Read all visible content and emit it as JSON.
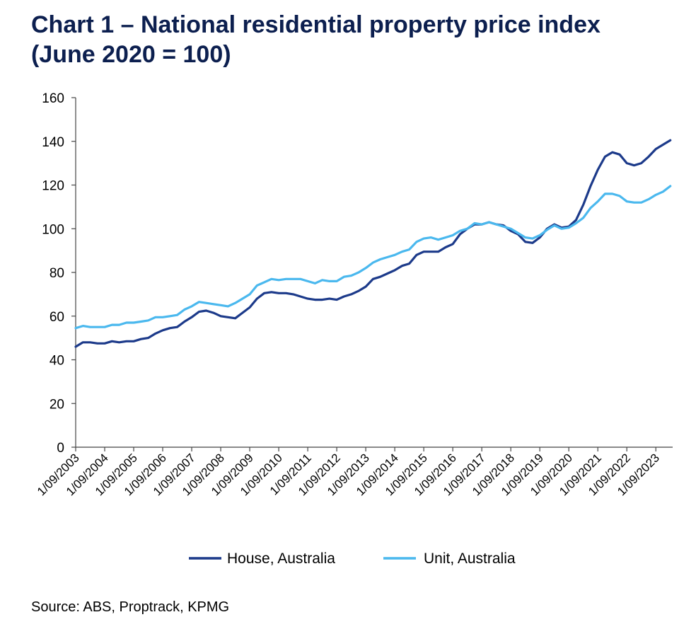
{
  "title_line1": "Chart 1 – National residential property price index",
  "title_line2": "(June 2020 = 100)",
  "source": "Source: ABS, Proptrack, KPMG",
  "colors": {
    "house": "#1c3a8a",
    "unit": "#4ab8ee",
    "axis": "#444444"
  },
  "chart_data": {
    "type": "line",
    "title": "Chart 1 – National residential property price index (June 2020 = 100)",
    "xlabel": "",
    "ylabel": "",
    "ylim": [
      0,
      160
    ],
    "yticks": [
      "0",
      "20",
      "40",
      "60",
      "80",
      "100",
      "120",
      "140",
      "160"
    ],
    "x_labels": [
      "1/09/2003",
      "1/09/2004",
      "1/09/2005",
      "1/09/2006",
      "1/09/2007",
      "1/09/2008",
      "1/09/2009",
      "1/09/2010",
      "1/09/2011",
      "1/09/2012",
      "1/09/2013",
      "1/09/2014",
      "1/09/2015",
      "1/09/2016",
      "1/09/2017",
      "1/09/2018",
      "1/09/2019",
      "1/09/2020",
      "1/09/2021",
      "1/09/2022",
      "1/09/2023"
    ],
    "x_start": 2003.67,
    "x_end": 2024.25,
    "legend_position": "bottom",
    "series": [
      {
        "name": "House, Australia",
        "color_key": "house",
        "x": [
          2003.67,
          2003.92,
          2004.17,
          2004.42,
          2004.67,
          2004.92,
          2005.17,
          2005.42,
          2005.67,
          2005.92,
          2006.17,
          2006.42,
          2006.67,
          2006.92,
          2007.17,
          2007.42,
          2007.67,
          2007.92,
          2008.17,
          2008.42,
          2008.67,
          2008.92,
          2009.17,
          2009.42,
          2009.67,
          2009.92,
          2010.17,
          2010.42,
          2010.67,
          2010.92,
          2011.17,
          2011.42,
          2011.67,
          2011.92,
          2012.17,
          2012.42,
          2012.67,
          2012.92,
          2013.17,
          2013.42,
          2013.67,
          2013.92,
          2014.17,
          2014.42,
          2014.67,
          2014.92,
          2015.17,
          2015.42,
          2015.67,
          2015.92,
          2016.17,
          2016.42,
          2016.67,
          2016.92,
          2017.17,
          2017.42,
          2017.67,
          2017.92,
          2018.17,
          2018.42,
          2018.67,
          2018.92,
          2019.17,
          2019.42,
          2019.67,
          2019.92,
          2020.17,
          2020.42,
          2020.67,
          2020.92,
          2021.17,
          2021.42,
          2021.67,
          2021.92,
          2022.17,
          2022.42,
          2022.67,
          2022.92,
          2023.17,
          2023.42,
          2023.67,
          2023.92,
          2024.17
        ],
        "values": [
          46,
          48,
          48,
          47.5,
          47.5,
          48.5,
          48,
          48.5,
          48.5,
          49.5,
          50,
          52,
          53.5,
          54.5,
          55,
          57.5,
          59.5,
          62,
          62.5,
          61.5,
          60,
          59.5,
          59,
          61.5,
          64,
          68,
          70.5,
          71,
          70.5,
          70.5,
          70,
          69,
          68,
          67.5,
          67.5,
          68,
          67.5,
          69,
          70,
          71.5,
          73.5,
          77,
          78,
          79.5,
          81,
          83,
          84,
          88,
          89.5,
          89.5,
          89.5,
          91.5,
          93,
          97.5,
          100,
          102,
          102,
          103,
          102,
          101.5,
          99,
          97.5,
          94,
          93.5,
          96,
          100,
          102,
          100.5,
          101,
          104,
          111,
          119.5,
          127,
          133,
          135,
          134,
          130,
          129,
          130,
          133,
          136.5,
          138.5,
          140.5
        ]
      },
      {
        "name": "Unit, Australia",
        "color_key": "unit",
        "x": [
          2003.67,
          2003.92,
          2004.17,
          2004.42,
          2004.67,
          2004.92,
          2005.17,
          2005.42,
          2005.67,
          2005.92,
          2006.17,
          2006.42,
          2006.67,
          2006.92,
          2007.17,
          2007.42,
          2007.67,
          2007.92,
          2008.17,
          2008.42,
          2008.67,
          2008.92,
          2009.17,
          2009.42,
          2009.67,
          2009.92,
          2010.17,
          2010.42,
          2010.67,
          2010.92,
          2011.17,
          2011.42,
          2011.67,
          2011.92,
          2012.17,
          2012.42,
          2012.67,
          2012.92,
          2013.17,
          2013.42,
          2013.67,
          2013.92,
          2014.17,
          2014.42,
          2014.67,
          2014.92,
          2015.17,
          2015.42,
          2015.67,
          2015.92,
          2016.17,
          2016.42,
          2016.67,
          2016.92,
          2017.17,
          2017.42,
          2017.67,
          2017.92,
          2018.17,
          2018.42,
          2018.67,
          2018.92,
          2019.17,
          2019.42,
          2019.67,
          2019.92,
          2020.17,
          2020.42,
          2020.67,
          2020.92,
          2021.17,
          2021.42,
          2021.67,
          2021.92,
          2022.17,
          2022.42,
          2022.67,
          2022.92,
          2023.17,
          2023.42,
          2023.67,
          2023.92,
          2024.17
        ],
        "values": [
          54.5,
          55.5,
          55,
          55,
          55,
          56,
          56,
          57,
          57,
          57.5,
          58,
          59.5,
          59.5,
          60,
          60.5,
          63,
          64.5,
          66.5,
          66,
          65.5,
          65,
          64.5,
          66,
          68,
          70,
          74,
          75.5,
          77,
          76.5,
          77,
          77,
          77,
          76,
          75,
          76.5,
          76,
          76,
          78,
          78.5,
          80,
          82,
          84.5,
          86,
          87,
          88,
          89.5,
          90.5,
          94,
          95.5,
          96,
          95,
          96,
          97,
          99,
          100,
          102.5,
          102,
          103,
          102,
          101,
          100,
          98,
          96,
          95.5,
          97,
          99.5,
          101.5,
          100,
          100.5,
          102.5,
          105,
          109.5,
          112.5,
          116,
          116,
          115,
          112.5,
          112,
          112,
          113.5,
          115.5,
          117,
          119.5
        ]
      }
    ]
  }
}
